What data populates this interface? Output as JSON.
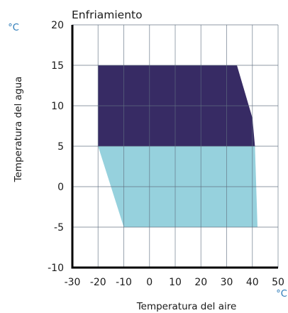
{
  "chart_data": {
    "type": "area",
    "title": "Enfriamiento",
    "xlabel": "Temperatura del aire",
    "ylabel": "Temperatura del agua",
    "x_unit": "°C",
    "y_unit": "°C",
    "xlim": [
      -30,
      50
    ],
    "ylim": [
      -10,
      20
    ],
    "x_ticks": [
      -30,
      -20,
      -10,
      0,
      10,
      20,
      30,
      40,
      50
    ],
    "y_ticks": [
      -10,
      -5,
      0,
      5,
      10,
      15,
      20
    ],
    "x_tick_labels": [
      "-30",
      "-20",
      "-10",
      "0",
      "10",
      "20",
      "30",
      "40",
      "50"
    ],
    "y_tick_labels": [
      "-10",
      "-5",
      "0",
      "5",
      "10",
      "15",
      "20"
    ],
    "grid": true,
    "regions": [
      {
        "color": "#96d1dd",
        "points": [
          [
            -20,
            5
          ],
          [
            41,
            5
          ],
          [
            42,
            -5
          ],
          [
            -10,
            -5
          ]
        ]
      },
      {
        "color": "#372b64",
        "points": [
          [
            -20,
            15
          ],
          [
            34,
            15
          ],
          [
            40,
            8.5
          ],
          [
            41,
            5
          ],
          [
            -20,
            5
          ]
        ]
      }
    ],
    "axis_color": "#000000",
    "grid_color": "#5f6f80"
  }
}
